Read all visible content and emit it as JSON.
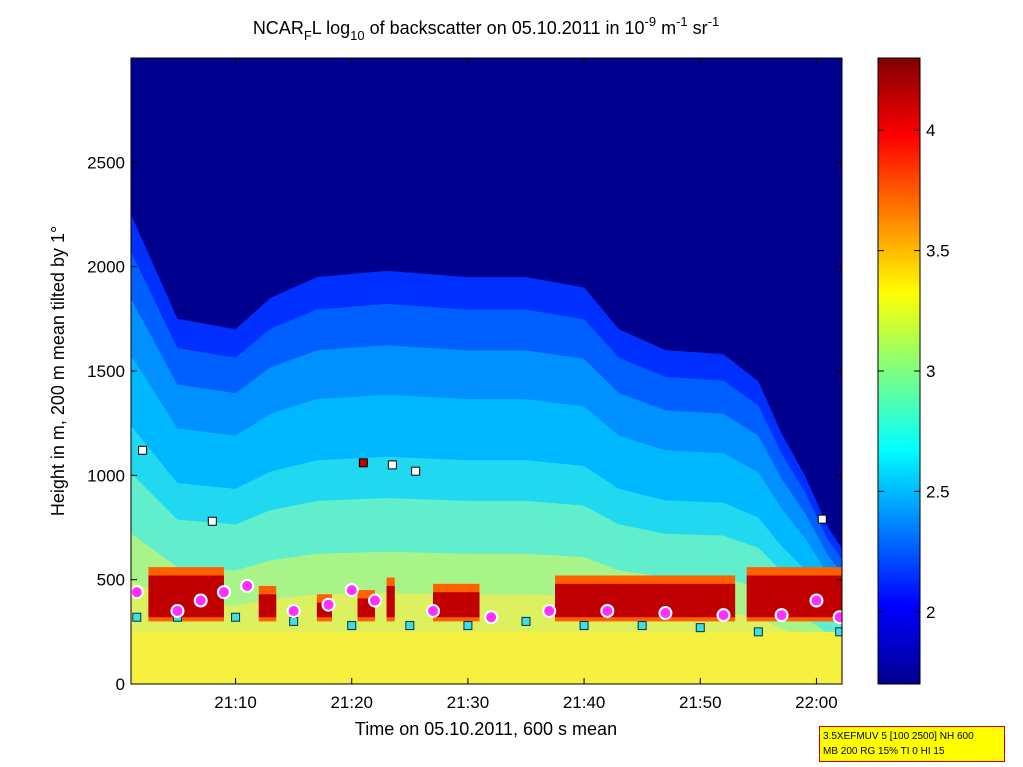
{
  "chart_data": {
    "type": "heatmap",
    "title": {
      "instrument": "NCAR",
      "instrument_sub": "F",
      "instrument_tail": "L log",
      "log_base": "10",
      "text": " of backscatter on 05.10.2011 in 10",
      "exp1": "-9",
      "unit1": " m",
      "exp2": "-1",
      "unit2": " sr",
      "exp3": "-1"
    },
    "xlabel": "Time on 05.10.2011, 600 s mean",
    "ylabel": "Height in m, 200 m mean tilted by 1°",
    "x_ticks": [
      "21:10",
      "21:20",
      "21:30",
      "21:40",
      "21:50",
      "22:00"
    ],
    "x_tick_minutes": [
      10,
      20,
      30,
      40,
      50,
      60
    ],
    "xlim_minutes": [
      1,
      62.2
    ],
    "y_ticks": [
      "0",
      "500",
      "1000",
      "1500",
      "2000",
      "2500"
    ],
    "y_tick_values": [
      0,
      500,
      1000,
      1500,
      2000,
      2500
    ],
    "ylim": [
      0,
      3000
    ],
    "colorbar": {
      "ticks": [
        "2",
        "2.5",
        "3",
        "3.5",
        "4"
      ],
      "tick_values": [
        2,
        2.5,
        3,
        3.5,
        4
      ],
      "range": [
        1.7,
        4.3
      ]
    },
    "cloud_base_height_m": [
      1120,
      780,
      1060,
      1050,
      1020,
      790
    ],
    "boundary_layer_height_m": [
      [
        1.5,
        320
      ],
      [
        5,
        320
      ],
      [
        10,
        320
      ],
      [
        15,
        300
      ],
      [
        20,
        280
      ],
      [
        25,
        280
      ],
      [
        30,
        280
      ],
      [
        35,
        300
      ],
      [
        40,
        280
      ],
      [
        45,
        280
      ],
      [
        50,
        270
      ],
      [
        55,
        250
      ],
      [
        62,
        250
      ]
    ],
    "upper_layer_height_m": [
      [
        1.5,
        440
      ],
      [
        5,
        350
      ],
      [
        7,
        400
      ],
      [
        9,
        440
      ],
      [
        11,
        470
      ],
      [
        15,
        350
      ],
      [
        18,
        380
      ],
      [
        20,
        450
      ],
      [
        22,
        400
      ],
      [
        27,
        350
      ],
      [
        32,
        320
      ],
      [
        37,
        350
      ],
      [
        42,
        350
      ],
      [
        47,
        340
      ],
      [
        52,
        330
      ],
      [
        57,
        330
      ],
      [
        60,
        400
      ],
      [
        62,
        320
      ]
    ],
    "aerosol_top_height_m": [
      [
        1,
        2250
      ],
      [
        5,
        1750
      ],
      [
        10,
        1700
      ],
      [
        13,
        1850
      ],
      [
        17,
        1950
      ],
      [
        23,
        1980
      ],
      [
        30,
        1950
      ],
      [
        35,
        1950
      ],
      [
        40,
        1900
      ],
      [
        43,
        1700
      ],
      [
        47,
        1600
      ],
      [
        52,
        1580
      ],
      [
        55,
        1450
      ],
      [
        57,
        1200
      ],
      [
        59,
        1000
      ],
      [
        61,
        750
      ],
      [
        62.2,
        650
      ]
    ]
  },
  "info_box": {
    "line1": "3.5XEFMUV 5 [100 2500] NH 600",
    "line2": "MB 200 RG 15% TI 0 HI 15"
  }
}
